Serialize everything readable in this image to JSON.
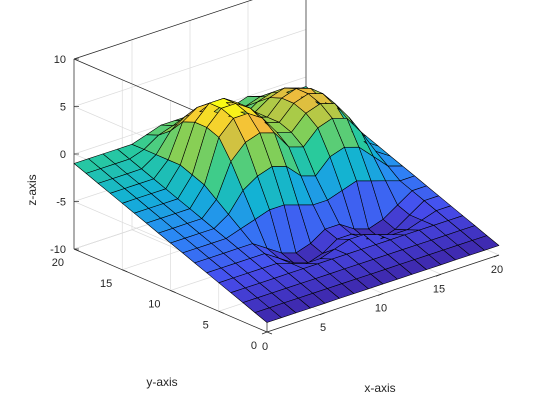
{
  "chart_data": {
    "type": "surface",
    "xlabel": "x-axis",
    "ylabel": "y-axis",
    "zlabel": "z-axis",
    "xlim": [
      0,
      20
    ],
    "ylim": [
      0,
      20
    ],
    "zlim": [
      -10,
      10
    ],
    "x_ticks": [
      "0",
      "5",
      "10",
      "15",
      "20"
    ],
    "y_ticks": [
      "0",
      "5",
      "10",
      "15",
      "20"
    ],
    "z_ticks": [
      "-10",
      "-5",
      "0",
      "5",
      "10"
    ],
    "grid": true,
    "colormap": "parula",
    "edge_color": "#000000",
    "x_grid": [
      0,
      1.25,
      2.5,
      3.75,
      5,
      6.25,
      7.5,
      8.75,
      10,
      11.25,
      12.5,
      13.75,
      15,
      16.25,
      17.5,
      18.75,
      20
    ],
    "y_grid": [
      0,
      1.25,
      2.5,
      3.75,
      5,
      6.25,
      7.5,
      8.75,
      10,
      11.25,
      12.5,
      13.75,
      15,
      16.25,
      17.5,
      18.75,
      20
    ],
    "z_values": [
      [
        -9,
        -9,
        -9,
        -9,
        -9,
        -9,
        -9,
        -9,
        -9,
        -9,
        -9,
        -9,
        -9,
        -9,
        -9,
        -9,
        -9
      ],
      [
        -8.5,
        -8.5,
        -8.5,
        -8.5,
        -8.5,
        -8.5,
        -8.5,
        -8.5,
        -8.5,
        -8.5,
        -8.5,
        -8.5,
        -8.5,
        -8.5,
        -8.5,
        -8.5,
        -8.5
      ],
      [
        -8,
        -8,
        -8,
        -8,
        -8,
        -8,
        -8,
        -8,
        -8,
        -8,
        -8,
        -8,
        -8,
        -8,
        -8,
        -8,
        -8
      ],
      [
        -7.5,
        -7.5,
        -7.5,
        -7.5,
        -7.5,
        -7.5,
        -7.5,
        -7.5,
        -7.5,
        -7.5,
        -7.5,
        -7.5,
        -7.5,
        -7.5,
        -7.5,
        -7.5,
        -7.5
      ],
      [
        -7,
        -7,
        -7,
        -7,
        -7,
        -7.5,
        -8,
        -8,
        -7.5,
        -7,
        -7,
        -7.5,
        -8,
        -8,
        -7.5,
        -7,
        -7
      ],
      [
        -6.5,
        -6.5,
        -6.5,
        -6.5,
        -6.5,
        -7.5,
        -8.5,
        -9,
        -8.5,
        -7.5,
        -7.5,
        -8.5,
        -9,
        -8.5,
        -7.5,
        -6.5,
        -6.5
      ],
      [
        -6,
        -6,
        -6,
        -6,
        -6,
        -7,
        -8,
        -8.5,
        -8,
        -7,
        -7,
        -8,
        -8.5,
        -8,
        -7,
        -6,
        -6
      ],
      [
        -5.5,
        -5.5,
        -5.5,
        -5.5,
        -5,
        -4.5,
        -4,
        -4,
        -4.5,
        -5,
        -5,
        -4.5,
        -4,
        -4.5,
        -5,
        -5.5,
        -5.5
      ],
      [
        -5,
        -5,
        -5,
        -5,
        -4,
        -2,
        -1,
        -0.5,
        -1,
        -2.5,
        -3,
        -1.5,
        -1,
        -1.5,
        -3,
        -4.5,
        -5
      ],
      [
        -4.5,
        -4.5,
        -4.5,
        -4.5,
        -3,
        0.5,
        2,
        2.5,
        2,
        0,
        -0.5,
        1,
        1.5,
        1,
        -1,
        -3.5,
        -4.5
      ],
      [
        -4,
        -4,
        -4,
        -4,
        -2,
        2.5,
        4,
        4,
        3,
        1,
        0.5,
        2,
        2.5,
        2,
        0,
        -3,
        -4
      ],
      [
        -3.5,
        -3.5,
        -3.5,
        -3.5,
        -1.5,
        3,
        4.5,
        4.5,
        3.5,
        1.5,
        1,
        2.5,
        3,
        2.5,
        0.5,
        -2.5,
        -3.5
      ],
      [
        -3,
        -3,
        -3,
        -3,
        -1,
        3,
        4.5,
        4.5,
        3.5,
        1.5,
        1,
        2.5,
        3,
        2.5,
        0.5,
        -2,
        -3
      ],
      [
        -2.5,
        -2.5,
        -2.5,
        -2.5,
        -1,
        2.5,
        3.5,
        3.5,
        3,
        1.5,
        1,
        2,
        2.5,
        2,
        0.5,
        -1.5,
        -2.5
      ],
      [
        -2,
        -2,
        -2,
        -2,
        -1,
        1,
        2,
        2,
        1.5,
        0.5,
        0,
        1,
        1.5,
        1,
        0,
        -1,
        -2
      ],
      [
        -1.5,
        -1.5,
        -1.5,
        -1.5,
        -1,
        0,
        0.5,
        0.5,
        0.5,
        0,
        -0.5,
        0,
        0.5,
        0,
        -0.5,
        -1,
        -1.5
      ],
      [
        -1,
        -1,
        -1,
        -1,
        -1,
        -0.5,
        0,
        0,
        0,
        -0.5,
        -0.5,
        -0.5,
        0,
        -0.5,
        -0.5,
        -1,
        -1
      ]
    ]
  }
}
